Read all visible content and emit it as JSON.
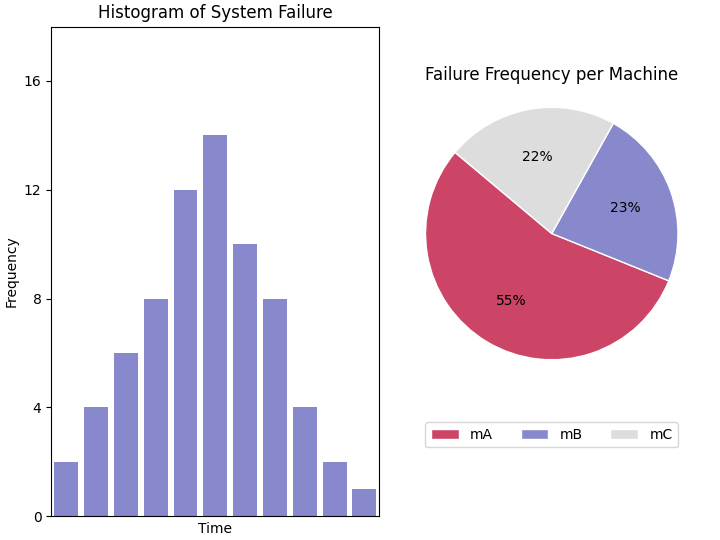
{
  "chart_data": [
    {
      "type": "bar",
      "title": "Histogram of System Failure",
      "x_label": "Time",
      "y_label": "Frequency",
      "categories": [
        null,
        null,
        null,
        null,
        null,
        null,
        null,
        null,
        null,
        null,
        null
      ],
      "values": [
        2,
        4,
        6,
        8,
        12,
        14,
        10,
        8,
        4,
        2,
        1
      ],
      "color": "#8888cc",
      "ylim": [
        0,
        18
      ],
      "yticks": [
        0,
        4,
        8,
        12,
        16
      ],
      "tick_labels": "y"
    },
    {
      "type": "pie",
      "title": "Failure Frequency per Machine",
      "categories": [
        "mA",
        "mB",
        "mC"
      ],
      "values": [
        55,
        23,
        22
      ],
      "value_labels": [
        "55%",
        "23%",
        "22%"
      ],
      "data_labels": true,
      "colors": [
        "#cc4466",
        "#8888cc",
        "#dddddd"
      ],
      "legend": "lower center"
    }
  ]
}
